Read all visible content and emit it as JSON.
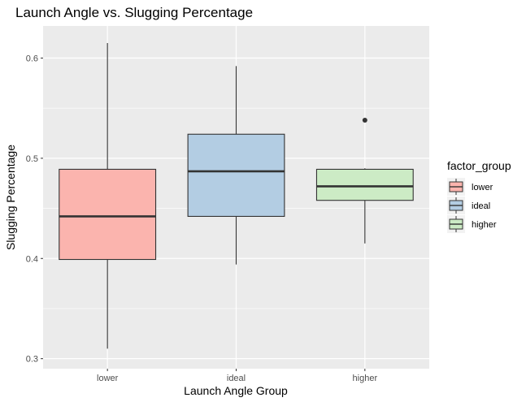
{
  "chart_data": {
    "type": "boxplot",
    "title": "Launch Angle vs. Slugging Percentage",
    "xlabel": "Launch Angle Group",
    "ylabel": "Slugging Percentage",
    "categories": [
      "lower",
      "ideal",
      "higher"
    ],
    "ylim": [
      0.29,
      0.632
    ],
    "yticks": [
      0.3,
      0.4,
      0.5,
      0.6
    ],
    "ytick_labels": [
      "0.3",
      "0.4",
      "0.5",
      "0.6"
    ],
    "grid": true,
    "boxes": [
      {
        "category": "lower",
        "whisker_low": 0.31,
        "q1": 0.399,
        "median": 0.442,
        "q3": 0.489,
        "whisker_high": 0.615,
        "outliers": [],
        "fill": "#FBB4AE"
      },
      {
        "category": "ideal",
        "whisker_low": 0.394,
        "q1": 0.442,
        "median": 0.487,
        "q3": 0.524,
        "whisker_high": 0.592,
        "outliers": [],
        "fill": "#B3CDE3"
      },
      {
        "category": "higher",
        "whisker_low": 0.415,
        "q1": 0.458,
        "median": 0.472,
        "q3": 0.489,
        "whisker_high": 0.49,
        "outliers": [
          0.538
        ],
        "fill": "#CCEBC5"
      }
    ],
    "legend": {
      "title": "factor_group",
      "placement": "right",
      "entries": [
        "lower",
        "ideal",
        "higher"
      ]
    },
    "colors": {
      "panel": "#EBEBEB",
      "grid": "#FFFFFF",
      "box_line": "#333333",
      "axis_text": "#4D4D4D"
    }
  }
}
